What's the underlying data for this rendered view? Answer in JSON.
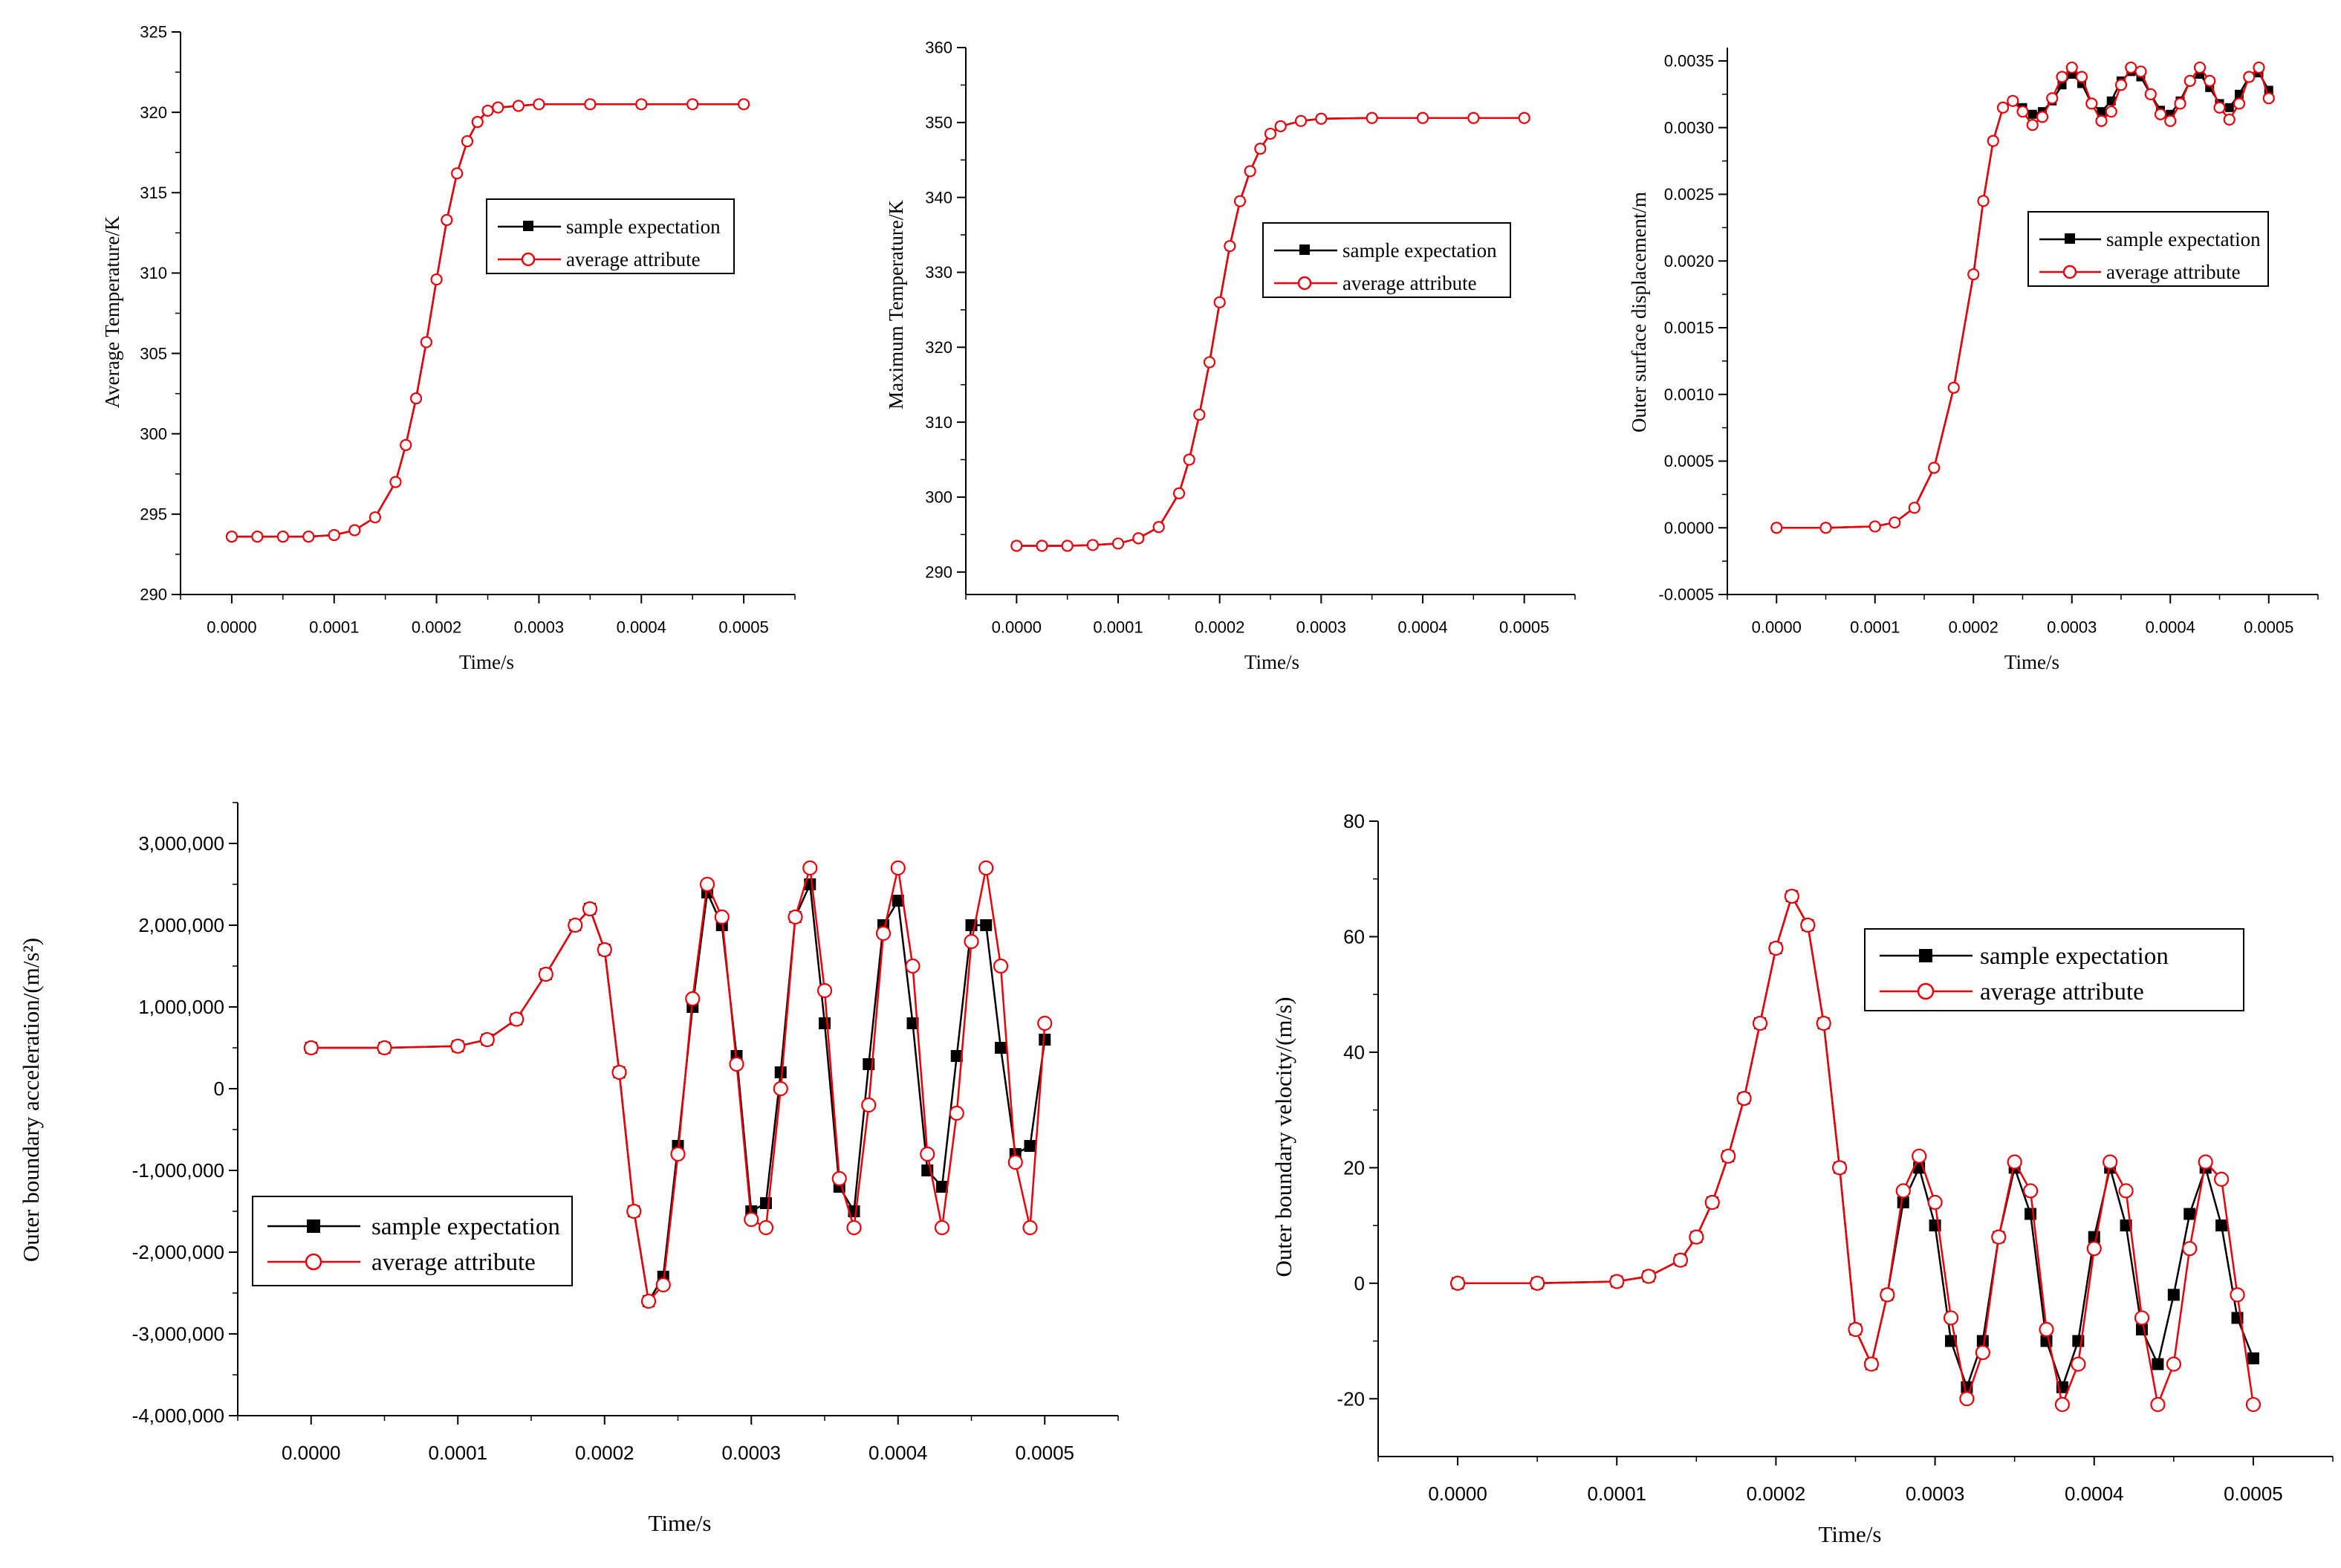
{
  "colors": {
    "expectation": "#000000",
    "attribute": "#e8000b",
    "axis": "#000000",
    "background": "#ffffff"
  },
  "legend": {
    "series1": "sample expectation",
    "series2": "average attribute"
  },
  "chart_data": [
    {
      "id": "avg-temp",
      "type": "line",
      "title": "",
      "xlabel": "Time/s",
      "ylabel": "Average Temperature/K",
      "xlim": [
        -5e-05,
        0.00055
      ],
      "ylim": [
        290,
        325
      ],
      "xticks": [
        "0.0000",
        "0.0001",
        "0.0002",
        "0.0003",
        "0.0004",
        "0.0005"
      ],
      "yticks": [
        "290",
        "295",
        "300",
        "305",
        "310",
        "315",
        "320",
        "325"
      ],
      "ytick_values": [
        290,
        295,
        300,
        305,
        310,
        315,
        320,
        325
      ],
      "legend_position": "center-right",
      "series": [
        {
          "name": "sample expectation",
          "marker": "square",
          "x": [
            0.0,
            2.5e-05,
            5e-05,
            7.5e-05,
            0.0001,
            0.00012,
            0.00014,
            0.00016,
            0.00017,
            0.00018,
            0.00019,
            0.0002,
            0.00021,
            0.00022,
            0.00023,
            0.00024,
            0.00025,
            0.00026,
            0.00028,
            0.0003,
            0.00035,
            0.0004,
            0.00045,
            0.0005
          ],
          "values": [
            293.6,
            293.6,
            293.6,
            293.6,
            293.7,
            294.0,
            294.8,
            297.0,
            299.3,
            302.2,
            305.7,
            309.6,
            313.3,
            316.2,
            318.2,
            319.4,
            320.1,
            320.3,
            320.4,
            320.5,
            320.5,
            320.5,
            320.5,
            320.5
          ]
        },
        {
          "name": "average attribute",
          "marker": "circle",
          "x": [
            0.0,
            2.5e-05,
            5e-05,
            7.5e-05,
            0.0001,
            0.00012,
            0.00014,
            0.00016,
            0.00017,
            0.00018,
            0.00019,
            0.0002,
            0.00021,
            0.00022,
            0.00023,
            0.00024,
            0.00025,
            0.00026,
            0.00028,
            0.0003,
            0.00035,
            0.0004,
            0.00045,
            0.0005
          ],
          "values": [
            293.6,
            293.6,
            293.6,
            293.6,
            293.7,
            294.0,
            294.8,
            297.0,
            299.3,
            302.2,
            305.7,
            309.6,
            313.3,
            316.2,
            318.2,
            319.4,
            320.1,
            320.3,
            320.4,
            320.5,
            320.5,
            320.5,
            320.5,
            320.5
          ]
        }
      ]
    },
    {
      "id": "max-temp",
      "type": "line",
      "title": "",
      "xlabel": "Time/s",
      "ylabel": "Maximum Temperature/K",
      "xlim": [
        -5e-05,
        0.00055
      ],
      "ylim": [
        287,
        360
      ],
      "xticks": [
        "0.0000",
        "0.0001",
        "0.0002",
        "0.0003",
        "0.0004",
        "0.0005"
      ],
      "yticks": [
        "290",
        "300",
        "310",
        "320",
        "330",
        "340",
        "350",
        "360"
      ],
      "ytick_values": [
        290,
        300,
        310,
        320,
        330,
        340,
        350,
        360
      ],
      "legend_position": "center-right",
      "series": [
        {
          "name": "sample expectation",
          "marker": "square",
          "x": [
            0.0,
            2.5e-05,
            5e-05,
            7.5e-05,
            0.0001,
            0.00012,
            0.00014,
            0.00016,
            0.00017,
            0.00018,
            0.00019,
            0.0002,
            0.00021,
            0.00022,
            0.00023,
            0.00024,
            0.00025,
            0.00026,
            0.00028,
            0.0003,
            0.00035,
            0.0004,
            0.00045,
            0.0005
          ],
          "values": [
            293.5,
            293.5,
            293.5,
            293.6,
            293.8,
            294.5,
            296.0,
            300.5,
            305.0,
            311.0,
            318.0,
            326.0,
            333.5,
            339.5,
            343.5,
            346.5,
            348.5,
            349.5,
            350.2,
            350.5,
            350.6,
            350.6,
            350.6,
            350.6
          ]
        },
        {
          "name": "average attribute",
          "marker": "circle",
          "x": [
            0.0,
            2.5e-05,
            5e-05,
            7.5e-05,
            0.0001,
            0.00012,
            0.00014,
            0.00016,
            0.00017,
            0.00018,
            0.00019,
            0.0002,
            0.00021,
            0.00022,
            0.00023,
            0.00024,
            0.00025,
            0.00026,
            0.00028,
            0.0003,
            0.00035,
            0.0004,
            0.00045,
            0.0005
          ],
          "values": [
            293.5,
            293.5,
            293.5,
            293.6,
            293.8,
            294.5,
            296.0,
            300.5,
            305.0,
            311.0,
            318.0,
            326.0,
            333.5,
            339.5,
            343.5,
            346.5,
            348.5,
            349.5,
            350.2,
            350.5,
            350.6,
            350.6,
            350.6,
            350.6
          ]
        }
      ]
    },
    {
      "id": "outer-disp",
      "type": "line",
      "title": "",
      "xlabel": "Time/s",
      "ylabel": "Outer surface displacement/m",
      "xlim": [
        -5e-05,
        0.00055
      ],
      "ylim": [
        -0.0005,
        0.0036
      ],
      "xticks": [
        "0.0000",
        "0.0001",
        "0.0002",
        "0.0003",
        "0.0004",
        "0.0005"
      ],
      "yticks": [
        "-0.0005",
        "0.0000",
        "0.0005",
        "0.0010",
        "0.0015",
        "0.0020",
        "0.0025",
        "0.0030",
        "0.0035"
      ],
      "ytick_values": [
        -0.0005,
        0.0,
        0.0005,
        0.001,
        0.0015,
        0.002,
        0.0025,
        0.003,
        0.0035
      ],
      "legend_position": "center-right",
      "series": [
        {
          "name": "sample expectation",
          "marker": "square",
          "x": [
            0.0,
            5e-05,
            0.0001,
            0.00012,
            0.00014,
            0.00016,
            0.00018,
            0.0002,
            0.00021,
            0.00022,
            0.00023,
            0.00024,
            0.00025,
            0.00026,
            0.00027,
            0.00028,
            0.00029,
            0.0003,
            0.00031,
            0.00032,
            0.00033,
            0.00034,
            0.00035,
            0.00036,
            0.00037,
            0.00038,
            0.00039,
            0.0004,
            0.00041,
            0.00042,
            0.00043,
            0.00044,
            0.00045,
            0.00046,
            0.00047,
            0.00048,
            0.00049,
            0.0005
          ],
          "values": [
            0.0,
            0.0,
            1e-05,
            4e-05,
            0.00015,
            0.00045,
            0.00105,
            0.0019,
            0.00245,
            0.0029,
            0.00315,
            0.0032,
            0.00315,
            0.0031,
            0.00312,
            0.0032,
            0.00332,
            0.0034,
            0.00333,
            0.00318,
            0.00312,
            0.0032,
            0.00335,
            0.00342,
            0.00338,
            0.00325,
            0.00313,
            0.0031,
            0.0032,
            0.00335,
            0.0034,
            0.0033,
            0.00318,
            0.00315,
            0.00325,
            0.00338,
            0.00341,
            0.00328
          ]
        },
        {
          "name": "average attribute",
          "marker": "circle",
          "x": [
            0.0,
            5e-05,
            0.0001,
            0.00012,
            0.00014,
            0.00016,
            0.00018,
            0.0002,
            0.00021,
            0.00022,
            0.00023,
            0.00024,
            0.00025,
            0.00026,
            0.00027,
            0.00028,
            0.00029,
            0.0003,
            0.00031,
            0.00032,
            0.00033,
            0.00034,
            0.00035,
            0.00036,
            0.00037,
            0.00038,
            0.00039,
            0.0004,
            0.00041,
            0.00042,
            0.00043,
            0.00044,
            0.00045,
            0.00046,
            0.00047,
            0.00048,
            0.00049,
            0.0005
          ],
          "values": [
            0.0,
            0.0,
            1e-05,
            4e-05,
            0.00015,
            0.00045,
            0.00105,
            0.0019,
            0.00245,
            0.0029,
            0.00315,
            0.0032,
            0.00312,
            0.00302,
            0.00308,
            0.00322,
            0.00338,
            0.00345,
            0.00338,
            0.00318,
            0.00305,
            0.00312,
            0.00332,
            0.00345,
            0.00342,
            0.00325,
            0.0031,
            0.00305,
            0.00318,
            0.00335,
            0.00345,
            0.00335,
            0.00315,
            0.00306,
            0.00318,
            0.00338,
            0.00345,
            0.00322
          ]
        }
      ]
    },
    {
      "id": "outer-accel",
      "type": "line",
      "title": "",
      "xlabel": "Time/s",
      "ylabel": "Outer boundary acceleration/(m/s²)",
      "xlim": [
        -5e-05,
        0.00055
      ],
      "ylim": [
        -4000000,
        3500000
      ],
      "xticks": [
        "0.0000",
        "0.0001",
        "0.0002",
        "0.0003",
        "0.0004",
        "0.0005"
      ],
      "yticks": [
        "-4,000,000",
        "-3,000,000",
        "-2,000,000",
        "-1,000,000",
        "0",
        "1,000,000",
        "2,000,000",
        "3,000,000"
      ],
      "ytick_values": [
        -4000000,
        -3000000,
        -2000000,
        -1000000,
        0,
        1000000,
        2000000,
        3000000
      ],
      "legend_position": "bottom-left",
      "series": [
        {
          "name": "sample expectation",
          "marker": "square",
          "x": [
            0.0,
            5e-05,
            0.0001,
            0.00012,
            0.00014,
            0.00016,
            0.00018,
            0.00019,
            0.0002,
            0.00021,
            0.00022,
            0.00023,
            0.00024,
            0.00025,
            0.00026,
            0.00027,
            0.00028,
            0.00029,
            0.0003,
            0.00031,
            0.00032,
            0.00033,
            0.00034,
            0.00035,
            0.00036,
            0.00037,
            0.00038,
            0.00039,
            0.0004,
            0.00041,
            0.00042,
            0.00043,
            0.00044,
            0.00045,
            0.00046,
            0.00047,
            0.00048,
            0.00049,
            0.0005
          ],
          "values": [
            500000,
            500000,
            520000,
            600000,
            850000,
            1400000,
            2000000,
            2200000,
            1700000,
            200000,
            -1500000,
            -2600000,
            -2300000,
            -700000,
            1000000,
            2400000,
            2000000,
            400000,
            -1500000,
            -1400000,
            200000,
            2100000,
            2500000,
            800000,
            -1200000,
            -1500000,
            300000,
            2000000,
            2300000,
            800000,
            -1000000,
            -1200000,
            400000,
            2000000,
            2000000,
            500000,
            -800000,
            -700000,
            600000
          ]
        },
        {
          "name": "average attribute",
          "marker": "circle",
          "x": [
            0.0,
            5e-05,
            0.0001,
            0.00012,
            0.00014,
            0.00016,
            0.00018,
            0.00019,
            0.0002,
            0.00021,
            0.00022,
            0.00023,
            0.00024,
            0.00025,
            0.00026,
            0.00027,
            0.00028,
            0.00029,
            0.0003,
            0.00031,
            0.00032,
            0.00033,
            0.00034,
            0.00035,
            0.00036,
            0.00037,
            0.00038,
            0.00039,
            0.0004,
            0.00041,
            0.00042,
            0.00043,
            0.00044,
            0.00045,
            0.00046,
            0.00047,
            0.00048,
            0.00049,
            0.0005
          ],
          "values": [
            500000,
            500000,
            520000,
            600000,
            850000,
            1400000,
            2000000,
            2200000,
            1700000,
            200000,
            -1500000,
            -2600000,
            -2400000,
            -800000,
            1100000,
            2500000,
            2100000,
            300000,
            -1600000,
            -1700000,
            0,
            2100000,
            2700000,
            1200000,
            -1100000,
            -1700000,
            -200000,
            1900000,
            2700000,
            1500000,
            -800000,
            -1700000,
            -300000,
            1800000,
            2700000,
            1500000,
            -900000,
            -1700000,
            800000
          ]
        }
      ]
    },
    {
      "id": "outer-vel",
      "type": "line",
      "title": "",
      "xlabel": "Time/s",
      "ylabel": "Outer boundary velocity/(m/s)",
      "xlim": [
        -5e-05,
        0.00055
      ],
      "ylim": [
        -30,
        80
      ],
      "xticks": [
        "0.0000",
        "0.0001",
        "0.0002",
        "0.0003",
        "0.0004",
        "0.0005"
      ],
      "yticks": [
        "-20",
        "0",
        "20",
        "40",
        "60",
        "80"
      ],
      "ytick_values": [
        -20,
        0,
        20,
        40,
        60,
        80
      ],
      "legend_position": "top-right",
      "series": [
        {
          "name": "sample expectation",
          "marker": "square",
          "x": [
            0.0,
            5e-05,
            0.0001,
            0.00012,
            0.00014,
            0.00015,
            0.00016,
            0.00017,
            0.00018,
            0.00019,
            0.0002,
            0.00021,
            0.00022,
            0.00023,
            0.00024,
            0.00025,
            0.00026,
            0.00027,
            0.00028,
            0.00029,
            0.0003,
            0.00031,
            0.00032,
            0.00033,
            0.00034,
            0.00035,
            0.00036,
            0.00037,
            0.00038,
            0.00039,
            0.0004,
            0.00041,
            0.00042,
            0.00043,
            0.00044,
            0.00045,
            0.00046,
            0.00047,
            0.00048,
            0.00049,
            0.0005
          ],
          "values": [
            0,
            0,
            0.3,
            1.2,
            4,
            8,
            14,
            22,
            32,
            45,
            58,
            67,
            62,
            45,
            20,
            -8,
            -14,
            -2,
            14,
            20,
            10,
            -10,
            -18,
            -10,
            8,
            20,
            12,
            -10,
            -18,
            -10,
            8,
            20,
            10,
            -8,
            -14,
            -2,
            12,
            20,
            10,
            -6,
            -13
          ]
        },
        {
          "name": "average attribute",
          "marker": "circle",
          "x": [
            0.0,
            5e-05,
            0.0001,
            0.00012,
            0.00014,
            0.00015,
            0.00016,
            0.00017,
            0.00018,
            0.00019,
            0.0002,
            0.00021,
            0.00022,
            0.00023,
            0.00024,
            0.00025,
            0.00026,
            0.00027,
            0.00028,
            0.00029,
            0.0003,
            0.00031,
            0.00032,
            0.00033,
            0.00034,
            0.00035,
            0.00036,
            0.00037,
            0.00038,
            0.00039,
            0.0004,
            0.00041,
            0.00042,
            0.00043,
            0.00044,
            0.00045,
            0.00046,
            0.00047,
            0.00048,
            0.00049,
            0.0005
          ],
          "values": [
            0,
            0,
            0.3,
            1.2,
            4,
            8,
            14,
            22,
            32,
            45,
            58,
            67,
            62,
            45,
            20,
            -8,
            -14,
            -2,
            16,
            22,
            14,
            -6,
            -20,
            -12,
            8,
            21,
            16,
            -8,
            -21,
            -14,
            6,
            21,
            16,
            -6,
            -21,
            -14,
            6,
            21,
            18,
            -2,
            -21
          ]
        }
      ]
    }
  ]
}
